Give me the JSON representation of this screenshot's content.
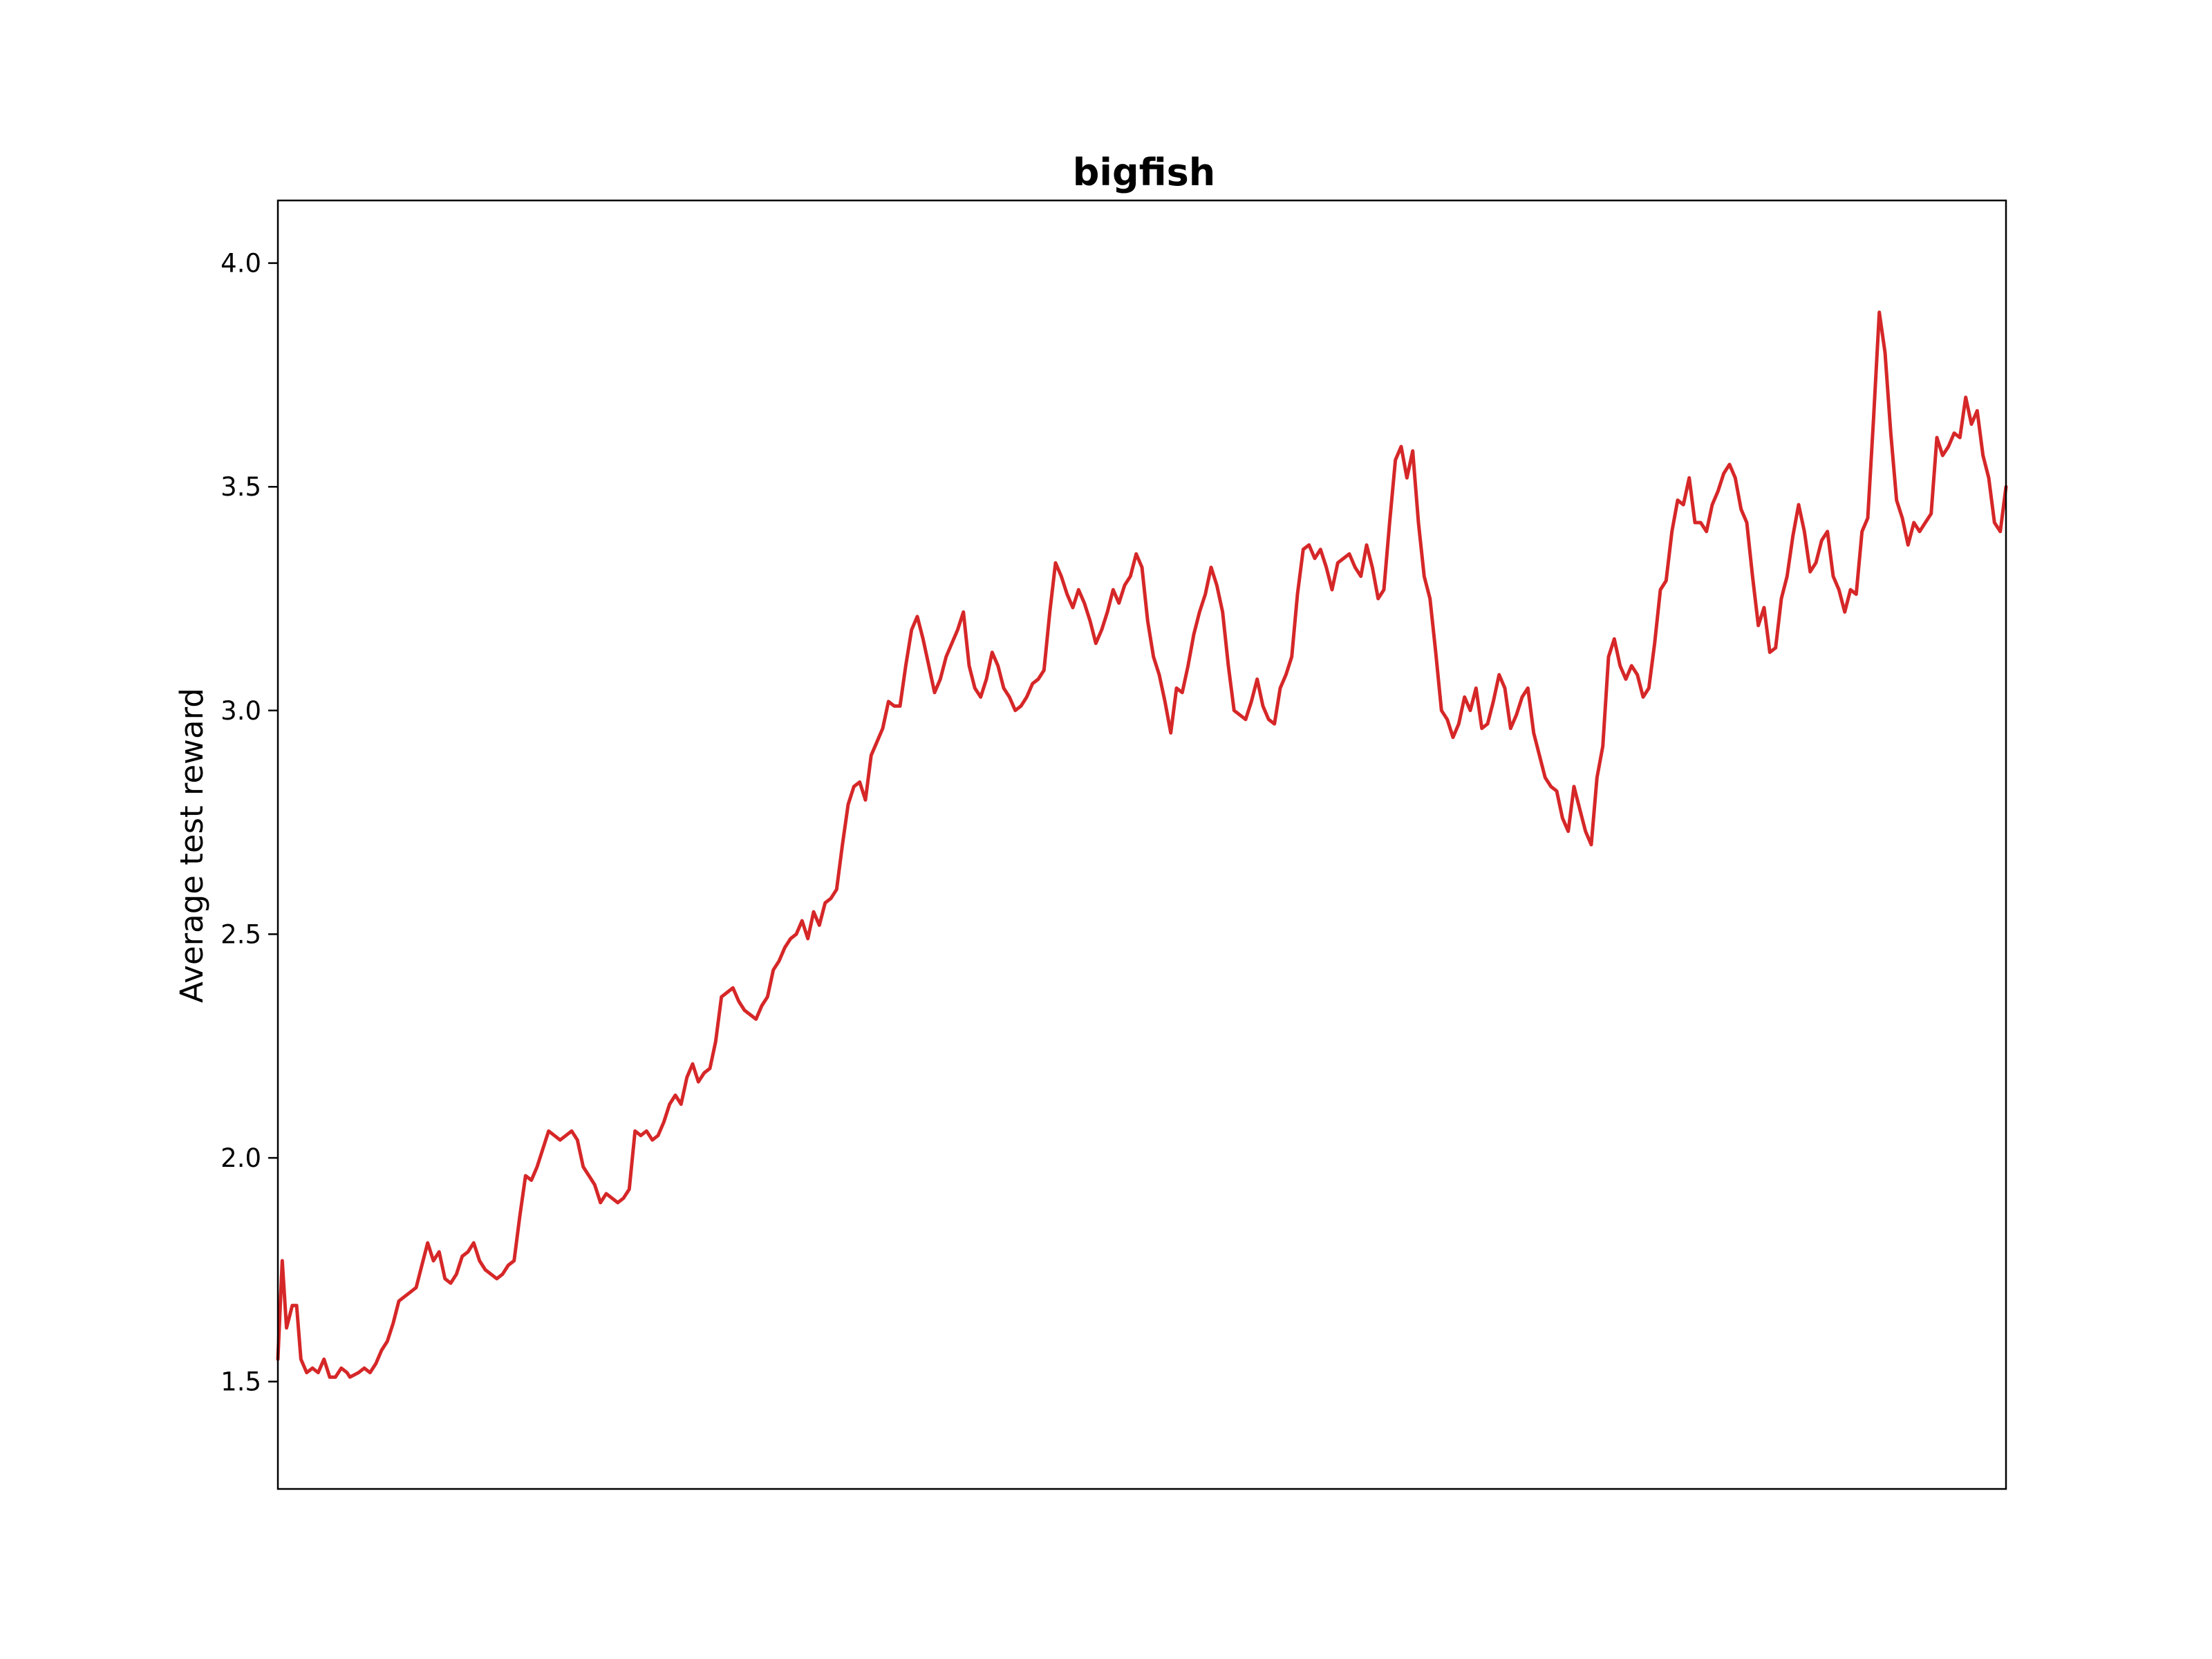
{
  "chart_data": {
    "type": "line",
    "title": "bigfish",
    "xlabel": "",
    "ylabel": "Average test reward",
    "ylim": [
      1.26,
      4.14
    ],
    "xlim": [
      0,
      600
    ],
    "yticks": [
      "1.5",
      "2.0",
      "2.5",
      "3.0",
      "3.5",
      "4.0"
    ],
    "grid": false,
    "x_ticks_visible": false,
    "color": "#d62728",
    "series": [
      {
        "points": [
          [
            0,
            1.55
          ],
          [
            1.5,
            1.77
          ],
          [
            3,
            1.62
          ],
          [
            5,
            1.67
          ],
          [
            6.5,
            1.67
          ],
          [
            8,
            1.55
          ],
          [
            10,
            1.52
          ],
          [
            12,
            1.53
          ],
          [
            14,
            1.52
          ],
          [
            16,
            1.55
          ],
          [
            18,
            1.51
          ],
          [
            20,
            1.51
          ],
          [
            22,
            1.53
          ],
          [
            24,
            1.52
          ],
          [
            25,
            1.51
          ],
          [
            28,
            1.52
          ],
          [
            30,
            1.53
          ],
          [
            32,
            1.52
          ],
          [
            34,
            1.54
          ],
          [
            36,
            1.57
          ],
          [
            38,
            1.59
          ],
          [
            40,
            1.63
          ],
          [
            42,
            1.68
          ],
          [
            44,
            1.69
          ],
          [
            46,
            1.7
          ],
          [
            48,
            1.71
          ],
          [
            50,
            1.76
          ],
          [
            52,
            1.81
          ],
          [
            54,
            1.77
          ],
          [
            56,
            1.79
          ],
          [
            58,
            1.73
          ],
          [
            60,
            1.72
          ],
          [
            62,
            1.74
          ],
          [
            64,
            1.78
          ],
          [
            66,
            1.79
          ],
          [
            68,
            1.81
          ],
          [
            70,
            1.77
          ],
          [
            72,
            1.75
          ],
          [
            74,
            1.74
          ],
          [
            76,
            1.73
          ],
          [
            78,
            1.74
          ],
          [
            80,
            1.76
          ],
          [
            82,
            1.77
          ],
          [
            84,
            1.87
          ],
          [
            86,
            1.96
          ],
          [
            88,
            1.95
          ],
          [
            90,
            1.98
          ],
          [
            92,
            2.02
          ],
          [
            94,
            2.06
          ],
          [
            96,
            2.05
          ],
          [
            98,
            2.04
          ],
          [
            100,
            2.05
          ],
          [
            102,
            2.06
          ],
          [
            104,
            2.04
          ],
          [
            106,
            1.98
          ],
          [
            108,
            1.96
          ],
          [
            110,
            1.94
          ],
          [
            112,
            1.9
          ],
          [
            114,
            1.92
          ],
          [
            116,
            1.91
          ],
          [
            118,
            1.9
          ],
          [
            120,
            1.91
          ],
          [
            122,
            1.93
          ],
          [
            124,
            2.06
          ],
          [
            126,
            2.05
          ],
          [
            128,
            2.06
          ],
          [
            130,
            2.04
          ],
          [
            132,
            2.05
          ],
          [
            134,
            2.08
          ],
          [
            136,
            2.12
          ],
          [
            138,
            2.14
          ],
          [
            140,
            2.12
          ],
          [
            142,
            2.18
          ],
          [
            144,
            2.21
          ],
          [
            146,
            2.17
          ],
          [
            148,
            2.19
          ],
          [
            150,
            2.2
          ],
          [
            152,
            2.26
          ],
          [
            154,
            2.36
          ],
          [
            156,
            2.37
          ],
          [
            158,
            2.38
          ],
          [
            160,
            2.35
          ],
          [
            162,
            2.33
          ],
          [
            164,
            2.32
          ],
          [
            166,
            2.31
          ],
          [
            168,
            2.34
          ],
          [
            170,
            2.36
          ],
          [
            172,
            2.42
          ],
          [
            174,
            2.44
          ],
          [
            176,
            2.47
          ],
          [
            178,
            2.49
          ],
          [
            180,
            2.5
          ],
          [
            182,
            2.53
          ],
          [
            184,
            2.49
          ],
          [
            186,
            2.55
          ],
          [
            188,
            2.52
          ],
          [
            190,
            2.57
          ],
          [
            192,
            2.58
          ],
          [
            194,
            2.6
          ],
          [
            196,
            2.7
          ],
          [
            198,
            2.79
          ],
          [
            200,
            2.83
          ],
          [
            202,
            2.84
          ],
          [
            204,
            2.8
          ],
          [
            206,
            2.9
          ],
          [
            208,
            2.93
          ],
          [
            210,
            2.96
          ],
          [
            212,
            3.02
          ],
          [
            214,
            3.01
          ],
          [
            216,
            3.01
          ],
          [
            218,
            3.1
          ],
          [
            220,
            3.18
          ],
          [
            222,
            3.21
          ],
          [
            224,
            3.16
          ],
          [
            226,
            3.1
          ],
          [
            228,
            3.04
          ],
          [
            230,
            3.07
          ],
          [
            232,
            3.12
          ],
          [
            234,
            3.15
          ],
          [
            236,
            3.18
          ],
          [
            238,
            3.22
          ],
          [
            240,
            3.1
          ],
          [
            242,
            3.05
          ],
          [
            244,
            3.03
          ],
          [
            246,
            3.07
          ],
          [
            248,
            3.13
          ],
          [
            250,
            3.1
          ],
          [
            252,
            3.05
          ],
          [
            254,
            3.03
          ],
          [
            256,
            3.0
          ],
          [
            258,
            3.01
          ],
          [
            260,
            3.03
          ],
          [
            262,
            3.06
          ],
          [
            264,
            3.07
          ],
          [
            266,
            3.09
          ],
          [
            268,
            3.22
          ],
          [
            270,
            3.33
          ],
          [
            272,
            3.3
          ],
          [
            274,
            3.26
          ],
          [
            276,
            3.23
          ],
          [
            278,
            3.27
          ],
          [
            280,
            3.24
          ],
          [
            282,
            3.2
          ],
          [
            284,
            3.15
          ],
          [
            286,
            3.18
          ],
          [
            288,
            3.22
          ],
          [
            290,
            3.27
          ],
          [
            292,
            3.24
          ],
          [
            294,
            3.28
          ],
          [
            296,
            3.3
          ],
          [
            298,
            3.35
          ],
          [
            300,
            3.32
          ],
          [
            302,
            3.2
          ],
          [
            304,
            3.12
          ],
          [
            306,
            3.08
          ],
          [
            308,
            3.02
          ],
          [
            310,
            2.95
          ],
          [
            312,
            3.05
          ],
          [
            314,
            3.04
          ],
          [
            316,
            3.1
          ],
          [
            318,
            3.17
          ],
          [
            320,
            3.22
          ],
          [
            322,
            3.26
          ],
          [
            324,
            3.32
          ],
          [
            326,
            3.28
          ],
          [
            328,
            3.22
          ],
          [
            330,
            3.1
          ],
          [
            332,
            3.0
          ],
          [
            334,
            2.99
          ],
          [
            336,
            2.98
          ],
          [
            338,
            3.02
          ],
          [
            340,
            3.07
          ],
          [
            342,
            3.01
          ],
          [
            344,
            2.98
          ],
          [
            346,
            2.97
          ],
          [
            348,
            3.05
          ],
          [
            350,
            3.08
          ],
          [
            352,
            3.12
          ],
          [
            354,
            3.26
          ],
          [
            356,
            3.36
          ],
          [
            358,
            3.37
          ],
          [
            360,
            3.34
          ],
          [
            362,
            3.36
          ],
          [
            364,
            3.32
          ],
          [
            366,
            3.27
          ],
          [
            368,
            3.33
          ],
          [
            370,
            3.34
          ],
          [
            372,
            3.35
          ],
          [
            374,
            3.32
          ],
          [
            376,
            3.3
          ],
          [
            378,
            3.37
          ],
          [
            380,
            3.32
          ],
          [
            382,
            3.25
          ],
          [
            384,
            3.27
          ],
          [
            386,
            3.42
          ],
          [
            388,
            3.56
          ],
          [
            390,
            3.59
          ],
          [
            392,
            3.52
          ],
          [
            394,
            3.58
          ],
          [
            396,
            3.42
          ],
          [
            398,
            3.3
          ],
          [
            400,
            3.25
          ],
          [
            402,
            3.13
          ],
          [
            404,
            3.0
          ],
          [
            406,
            2.98
          ],
          [
            408,
            2.94
          ],
          [
            410,
            2.97
          ],
          [
            412,
            3.03
          ],
          [
            414,
            3.0
          ],
          [
            416,
            3.05
          ],
          [
            418,
            2.96
          ],
          [
            420,
            2.97
          ],
          [
            422,
            3.02
          ],
          [
            424,
            3.08
          ],
          [
            426,
            3.05
          ],
          [
            428,
            2.96
          ],
          [
            430,
            2.99
          ],
          [
            432,
            3.03
          ],
          [
            434,
            3.05
          ],
          [
            436,
            2.95
          ],
          [
            438,
            2.9
          ],
          [
            440,
            2.85
          ],
          [
            442,
            2.83
          ],
          [
            444,
            2.82
          ],
          [
            446,
            2.76
          ],
          [
            448,
            2.73
          ],
          [
            450,
            2.83
          ],
          [
            452,
            2.78
          ],
          [
            454,
            2.73
          ],
          [
            456,
            2.7
          ],
          [
            458,
            2.85
          ],
          [
            460,
            2.92
          ],
          [
            462,
            3.12
          ],
          [
            464,
            3.16
          ],
          [
            466,
            3.1
          ],
          [
            468,
            3.07
          ],
          [
            470,
            3.1
          ],
          [
            472,
            3.08
          ],
          [
            474,
            3.03
          ],
          [
            476,
            3.05
          ],
          [
            478,
            3.15
          ],
          [
            480,
            3.27
          ],
          [
            482,
            3.29
          ],
          [
            484,
            3.4
          ],
          [
            486,
            3.47
          ],
          [
            488,
            3.46
          ],
          [
            490,
            3.52
          ],
          [
            492,
            3.42
          ],
          [
            494,
            3.42
          ],
          [
            496,
            3.4
          ],
          [
            498,
            3.46
          ],
          [
            500,
            3.49
          ],
          [
            502,
            3.53
          ],
          [
            504,
            3.55
          ],
          [
            506,
            3.52
          ],
          [
            508,
            3.45
          ],
          [
            510,
            3.42
          ],
          [
            512,
            3.3
          ],
          [
            514,
            3.19
          ],
          [
            516,
            3.23
          ],
          [
            518,
            3.13
          ],
          [
            520,
            3.14
          ],
          [
            522,
            3.25
          ],
          [
            524,
            3.3
          ],
          [
            526,
            3.39
          ],
          [
            528,
            3.46
          ],
          [
            530,
            3.4
          ],
          [
            532,
            3.31
          ],
          [
            534,
            3.33
          ],
          [
            536,
            3.38
          ],
          [
            538,
            3.4
          ],
          [
            540,
            3.3
          ],
          [
            542,
            3.27
          ],
          [
            544,
            3.22
          ],
          [
            546,
            3.27
          ],
          [
            548,
            3.26
          ],
          [
            550,
            3.4
          ],
          [
            552,
            3.43
          ],
          [
            554,
            3.65
          ],
          [
            556,
            3.89
          ],
          [
            558,
            3.8
          ],
          [
            560,
            3.62
          ],
          [
            562,
            3.47
          ],
          [
            564,
            3.43
          ],
          [
            566,
            3.37
          ],
          [
            568,
            3.42
          ],
          [
            570,
            3.4
          ],
          [
            572,
            3.42
          ],
          [
            574,
            3.44
          ],
          [
            576,
            3.61
          ],
          [
            578,
            3.57
          ],
          [
            580,
            3.59
          ],
          [
            582,
            3.62
          ],
          [
            584,
            3.61
          ],
          [
            586,
            3.7
          ],
          [
            588,
            3.64
          ],
          [
            590,
            3.67
          ],
          [
            592,
            3.57
          ],
          [
            594,
            3.52
          ],
          [
            596,
            3.42
          ],
          [
            598,
            3.4
          ],
          [
            600,
            3.5
          ]
        ]
      }
    ]
  }
}
